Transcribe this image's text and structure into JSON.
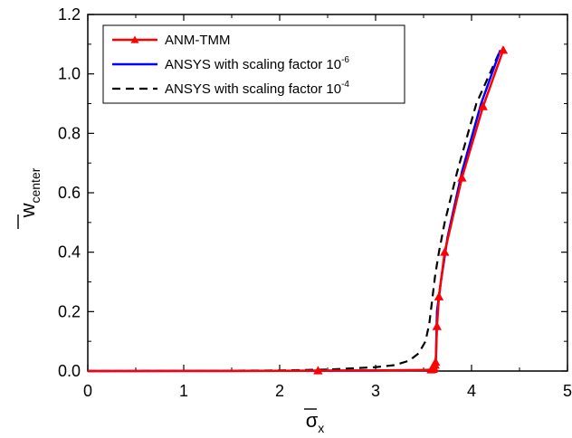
{
  "chart_data": {
    "type": "line",
    "title": "",
    "xlabel": {
      "main": "σ",
      "sub": "x",
      "overbar": true
    },
    "ylabel": {
      "main": "w",
      "sub": "center",
      "overbar": true
    },
    "xlim": [
      0,
      5
    ],
    "ylim": [
      0,
      1.2
    ],
    "xticks": [
      0,
      1,
      2,
      3,
      4,
      5
    ],
    "yticks": [
      0.0,
      0.2,
      0.4,
      0.6,
      0.8,
      1.0,
      1.2
    ],
    "xtick_labels": [
      "0",
      "1",
      "2",
      "3",
      "4",
      "5"
    ],
    "ytick_labels": [
      "0.0",
      "0.2",
      "0.4",
      "0.6",
      "0.8",
      "1.0",
      "1.2"
    ],
    "grid": false,
    "legend_position": "top-left",
    "series": [
      {
        "name": "ANM-TMM",
        "color": "#ff0000",
        "style": "solid",
        "marker": "triangle",
        "x": [
          0,
          0.5,
          1.0,
          1.5,
          2.0,
          2.4,
          3.0,
          3.4,
          3.58,
          3.6,
          3.61,
          3.62,
          3.625,
          3.63,
          3.64,
          3.66,
          3.72,
          3.9,
          4.12,
          4.33
        ],
        "y": [
          0,
          0.0001,
          0.0002,
          0.0004,
          0.0006,
          0.001,
          0.002,
          0.003,
          0.004,
          0.006,
          0.01,
          0.02,
          0.03,
          0.06,
          0.15,
          0.25,
          0.4,
          0.65,
          0.89,
          1.08
        ],
        "marker_indices": [
          5,
          8,
          9,
          10,
          11,
          12,
          14,
          15,
          16,
          17,
          18,
          19
        ]
      },
      {
        "name": "ANSYS with scaling factor 10",
        "name_sup": "-6",
        "color": "#0000ff",
        "style": "solid",
        "x": [
          0,
          1.0,
          2.0,
          3.0,
          3.5,
          3.6,
          3.62,
          3.63,
          3.64,
          3.68,
          3.75,
          3.9,
          4.1,
          4.3
        ],
        "y": [
          0,
          0.0002,
          0.0006,
          0.002,
          0.003,
          0.005,
          0.01,
          0.05,
          0.2,
          0.3,
          0.45,
          0.67,
          0.9,
          1.08
        ]
      },
      {
        "name": "ANSYS with scaling factor 10",
        "name_sup": "-4",
        "color": "#000000",
        "style": "dashed",
        "x": [
          0,
          1.0,
          2.0,
          2.5,
          3.0,
          3.2,
          3.35,
          3.45,
          3.52,
          3.56,
          3.59,
          3.62,
          3.66,
          3.72,
          3.85,
          4.05,
          4.3
        ],
        "y": [
          0,
          0.0005,
          0.002,
          0.005,
          0.013,
          0.02,
          0.035,
          0.06,
          0.1,
          0.16,
          0.24,
          0.32,
          0.4,
          0.5,
          0.67,
          0.9,
          1.08
        ]
      }
    ]
  }
}
